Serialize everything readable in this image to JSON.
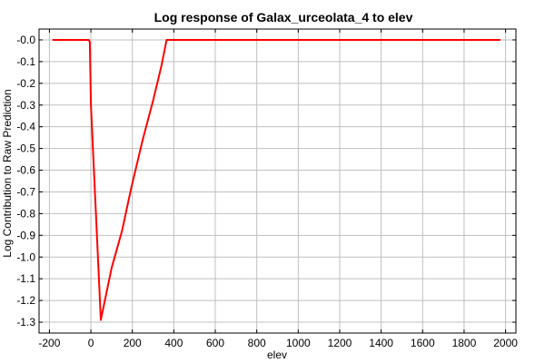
{
  "chart_data": {
    "type": "line",
    "title": "Log response of Galax_urceolata_4 to elev",
    "xlabel": "elev",
    "ylabel": "Log Contribution to Raw Prediction",
    "xlim": [
      -250,
      2050
    ],
    "ylim": [
      -1.35,
      0.05
    ],
    "xticks": [
      -200,
      0,
      200,
      400,
      600,
      800,
      1000,
      1200,
      1400,
      1600,
      1800,
      2000
    ],
    "xtick_labels": [
      "-200",
      "0",
      "200",
      "400",
      "600",
      "800",
      "1000",
      "1200",
      "1400",
      "1600",
      "1800",
      "2000"
    ],
    "yticks": [
      0.0,
      -0.1,
      -0.2,
      -0.3,
      -0.4,
      -0.5,
      -0.6,
      -0.7,
      -0.8,
      -0.9,
      -1.0,
      -1.1,
      -1.2,
      -1.3
    ],
    "ytick_labels": [
      "-0.0",
      "-0.1",
      "-0.2",
      "-0.3",
      "-0.4",
      "-0.5",
      "-0.6",
      "-0.7",
      "-0.8",
      "-0.9",
      "-1.0",
      "-1.1",
      "-1.2",
      "-1.3"
    ],
    "grid": true,
    "series": [
      {
        "color": "#ff0000",
        "x": [
          -185,
          -10,
          -5,
          0,
          48,
          100,
          150,
          195,
          250,
          300,
          340,
          365,
          1975
        ],
        "y": [
          0.0,
          0.0,
          -0.01,
          -0.3,
          -1.29,
          -1.05,
          -0.88,
          -0.68,
          -0.46,
          -0.28,
          -0.12,
          0.0,
          0.0
        ]
      }
    ]
  }
}
